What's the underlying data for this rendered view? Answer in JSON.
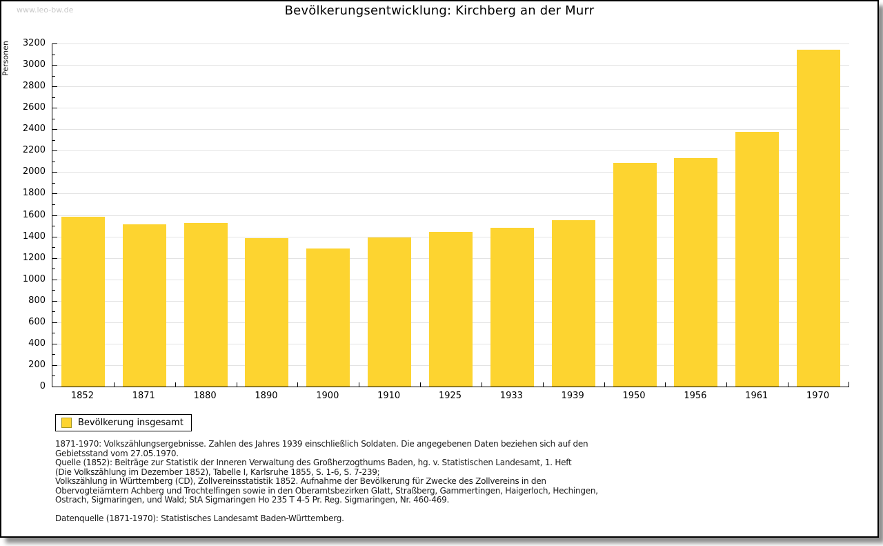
{
  "watermark": "www.leo-bw.de",
  "legend": {
    "label": "Bevölkerung insgesamt"
  },
  "footnotes": [
    "1871-1970: Volkszählungsergebnisse. Zahlen des Jahres 1939 einschließlich Soldaten. Die angegebenen Daten beziehen sich auf den",
    "Gebietsstand vom 27.05.1970.",
    "Quelle (1852): Beiträge zur Statistik der Inneren Verwaltung des Großherzogthums Baden, hg. v. Statistischen Landesamt, 1. Heft",
    "(Die Volkszählung im Dezember 1852), Tabelle I, Karlsruhe 1855, S. 1-6, S. 7-239;",
    "Volkszählung in Württemberg (CD), Zollvereinsstatistik 1852. Aufnahme der Bevölkerung für Zwecke des Zollvereins in den",
    "Obervogteiämtern Achberg und Trochtelfingen sowie in den Oberamtsbezirken Glatt, Straßberg, Gammertingen, Haigerloch, Hechingen,",
    "Ostrach, Sigmaringen, und Wald; StA Sigmaringen Ho 235 T 4-5 Pr. Reg. Sigmaringen, Nr. 460-469."
  ],
  "source_line": "Datenquelle (1871-1970): Statistisches Landesamt Baden-Württemberg.",
  "colors": {
    "bar": "#fdd430",
    "swatch_border": "#a69520",
    "gridline": "#e3e3e3",
    "watermark": "#c9c9c9"
  },
  "chart_data": {
    "type": "bar",
    "title": "Bevölkerungsentwicklung: Kirchberg an der Murr",
    "ylabel": "Personen",
    "xlabel": "",
    "categories": [
      "1852",
      "1871",
      "1880",
      "1890",
      "1900",
      "1910",
      "1925",
      "1933",
      "1939",
      "1950",
      "1956",
      "1961",
      "1970"
    ],
    "series": [
      {
        "name": "Bevölkerung insgesamt",
        "values": [
          1585,
          1510,
          1525,
          1385,
          1290,
          1390,
          1440,
          1480,
          1555,
          2085,
          2130,
          2375,
          3145
        ]
      }
    ],
    "ylim": [
      0,
      3200
    ],
    "ytick_major": 200,
    "ytick_minor": 100,
    "grid": true,
    "legend_position": "below-left"
  }
}
